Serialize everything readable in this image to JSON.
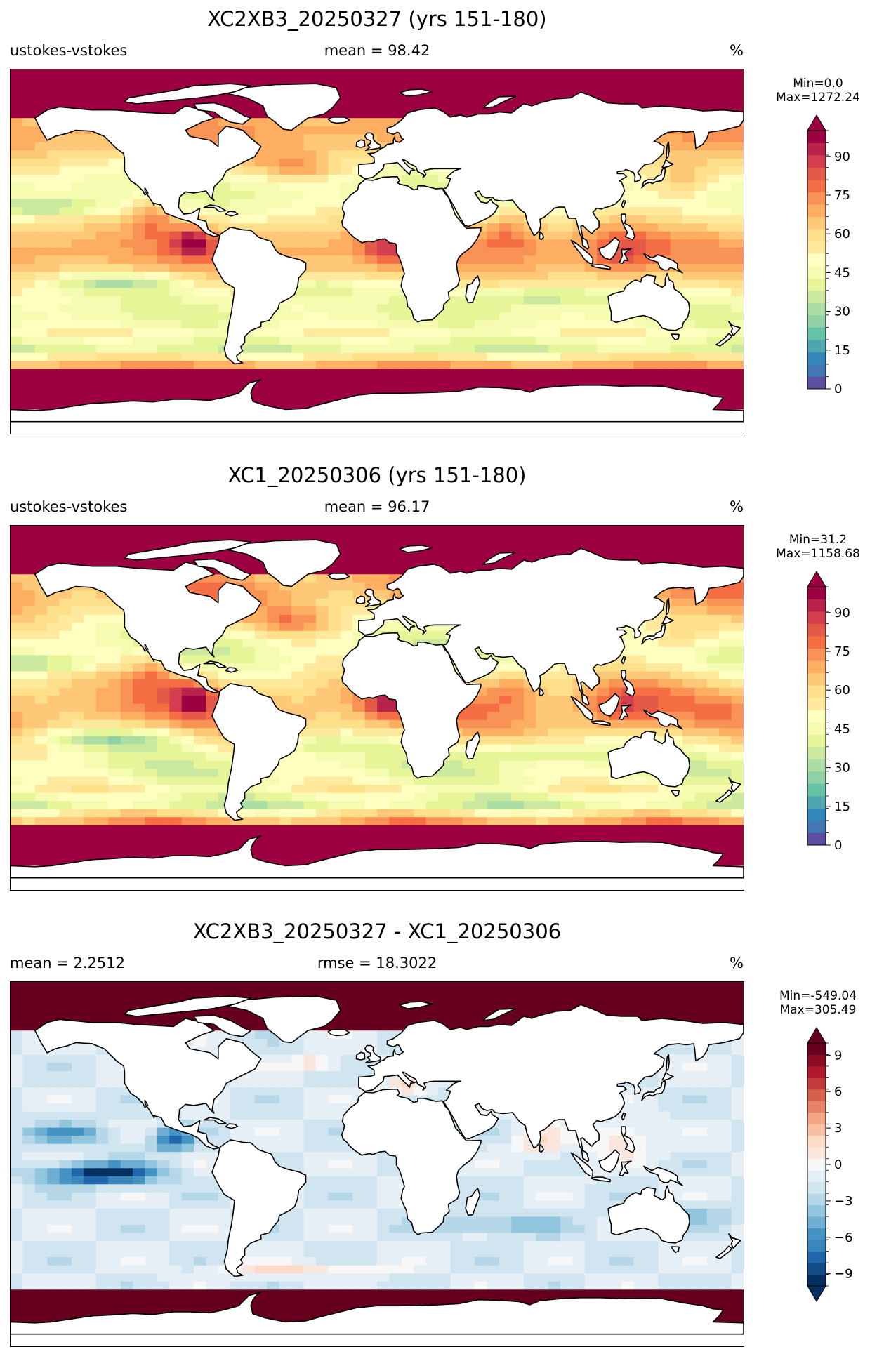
{
  "panels": [
    {
      "title": "XC2XB3_20250327 (yrs 151-180)",
      "left_label": "ustokes-vstokes",
      "center_label": "mean = 98.42",
      "right_label": "%",
      "cb_min": "Min=0.0",
      "cb_max": "Max=1272.24"
    },
    {
      "title": "XC1_20250306 (yrs 151-180)",
      "left_label": "ustokes-vstokes",
      "center_label": "mean = 96.17",
      "right_label": "%",
      "cb_min": "Min=31.2",
      "cb_max": "Max=1158.68"
    },
    {
      "title": "XC2XB3_20250327 - XC1_20250306",
      "left_label": "mean = 2.2512",
      "center_label": "rmse = 18.3022",
      "right_label": "%",
      "cb_min": "Min=-549.04",
      "cb_max": "Max=305.49"
    }
  ],
  "chart_data": [
    {
      "type": "heatmap",
      "projection": "global map, longitude -180 to 180, latitude -90 to 90",
      "title": "XC2XB3_20250327 (yrs 151-180)",
      "variable": "ustokes-vstokes",
      "units": "%",
      "mean": 98.42,
      "min": 0.0,
      "max": 1272.24,
      "colormap": "RdYlBu_r-like spectral",
      "colorbar": {
        "range": [
          0,
          100
        ],
        "ticks": [
          0,
          15,
          30,
          45,
          60,
          75,
          90
        ],
        "levels": 20,
        "extend": "max"
      },
      "colors": [
        "#5e4fa2",
        "#4478b5",
        "#3288bd",
        "#4fa6b1",
        "#66c2a5",
        "#8fd1a4",
        "#abdda4",
        "#cbe99e",
        "#e6f598",
        "#f6fbb2",
        "#ffffbf",
        "#fee99d",
        "#fee08b",
        "#fdc877",
        "#fdae61",
        "#f99355",
        "#f46d43",
        "#e45a47",
        "#d53e4f",
        "#b8234b",
        "#9e0142"
      ]
    },
    {
      "type": "heatmap",
      "projection": "global map, longitude -180 to 180, latitude -90 to 90",
      "title": "XC1_20250306 (yrs 151-180)",
      "variable": "ustokes-vstokes",
      "units": "%",
      "mean": 96.17,
      "min": 31.2,
      "max": 1158.68,
      "colormap": "RdYlBu_r-like spectral",
      "colorbar": {
        "range": [
          0,
          100
        ],
        "ticks": [
          0,
          15,
          30,
          45,
          60,
          75,
          90
        ],
        "levels": 20,
        "extend": "max"
      },
      "colors": [
        "#5e4fa2",
        "#4478b5",
        "#3288bd",
        "#4fa6b1",
        "#66c2a5",
        "#8fd1a4",
        "#abdda4",
        "#cbe99e",
        "#e6f598",
        "#f6fbb2",
        "#ffffbf",
        "#fee99d",
        "#fee08b",
        "#fdc877",
        "#fdae61",
        "#f99355",
        "#f46d43",
        "#e45a47",
        "#d53e4f",
        "#b8234b",
        "#9e0142"
      ]
    },
    {
      "type": "heatmap",
      "projection": "global map, longitude -180 to 180, latitude -90 to 90",
      "title": "XC2XB3_20250327 - XC1_20250306",
      "units": "%",
      "mean": 2.2512,
      "rmse": 18.3022,
      "min": -549.04,
      "max": 305.49,
      "colormap": "RdBu_r diverging",
      "colorbar": {
        "range": [
          -10,
          10
        ],
        "ticks": [
          -9,
          -6,
          -3,
          0,
          3,
          6,
          9
        ],
        "levels": 20,
        "extend": "both"
      },
      "colors": [
        "#053061",
        "#134c87",
        "#2166ac",
        "#3a87bd",
        "#4393c3",
        "#6eaed2",
        "#92c5de",
        "#b5d7e8",
        "#d1e5f0",
        "#e6eff5",
        "#f7f7f7",
        "#f9e6dc",
        "#fddbc7",
        "#f8bfa4",
        "#f4a582",
        "#e58267",
        "#d6604d",
        "#c13b3c",
        "#b2182b",
        "#8b0c25",
        "#67001f"
      ]
    }
  ]
}
